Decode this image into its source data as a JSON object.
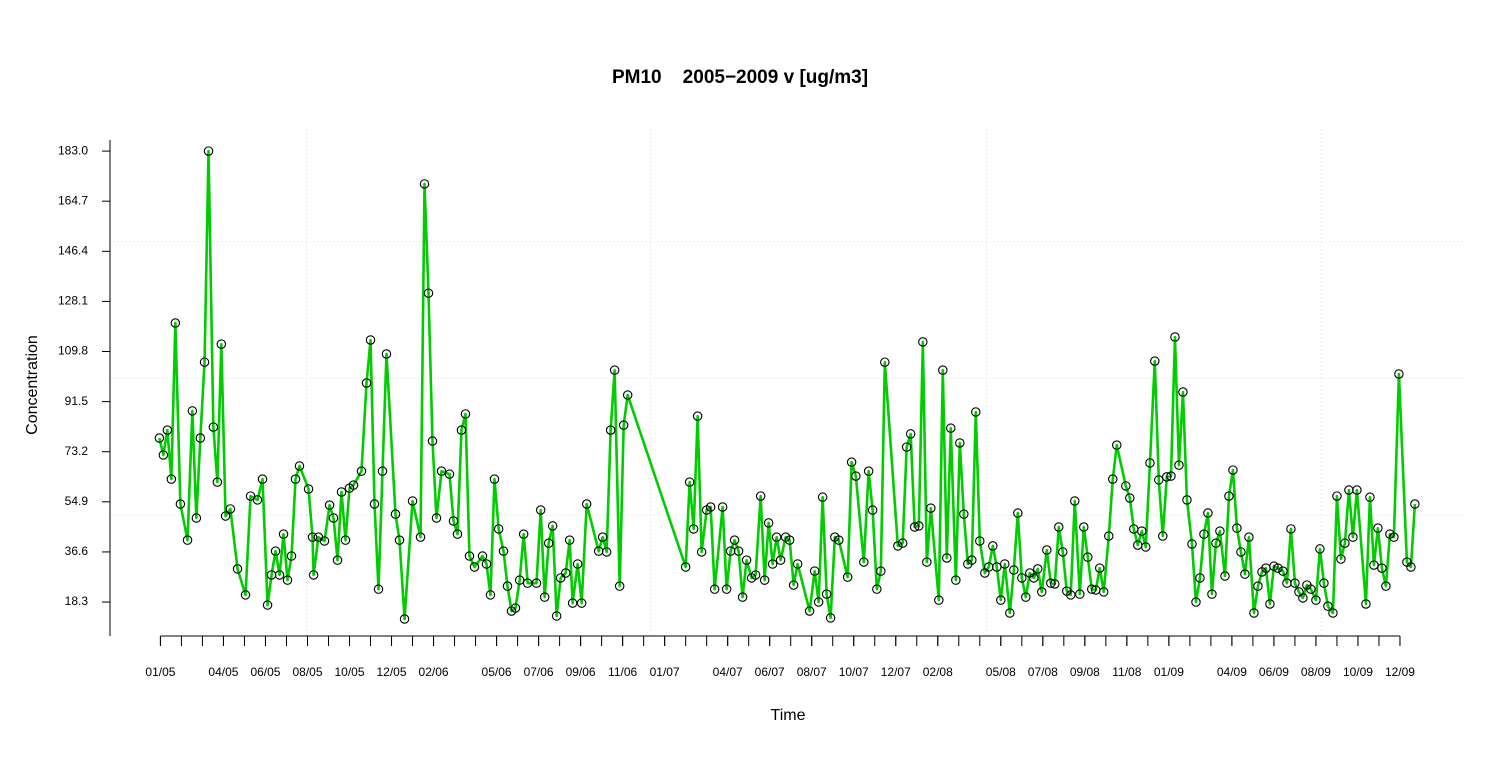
{
  "chart_data": {
    "type": "line",
    "title": "PM10    2005−2009 v [ug/m3]",
    "x_label": "Time",
    "y_label": "Concentration",
    "xlim": [
      -2.4,
      62
    ],
    "ylim": [
      5.9,
      190.7
    ],
    "xticks": [
      {
        "value": 0,
        "label": "01/05"
      },
      {
        "value": 3,
        "label": "04/05"
      },
      {
        "value": 5,
        "label": "06/05"
      },
      {
        "value": 7,
        "label": "08/05"
      },
      {
        "value": 9,
        "label": "10/05"
      },
      {
        "value": 11,
        "label": "12/05"
      },
      {
        "value": 13,
        "label": "02/06"
      },
      {
        "value": 16,
        "label": "05/06"
      },
      {
        "value": 18,
        "label": "07/06"
      },
      {
        "value": 20,
        "label": "09/06"
      },
      {
        "value": 22,
        "label": "11/06"
      },
      {
        "value": 24,
        "label": "01/07"
      },
      {
        "value": 27,
        "label": "04/07"
      },
      {
        "value": 29,
        "label": "06/07"
      },
      {
        "value": 31,
        "label": "08/07"
      },
      {
        "value": 33,
        "label": "10/07"
      },
      {
        "value": 35,
        "label": "12/07"
      },
      {
        "value": 37,
        "label": "02/08"
      },
      {
        "value": 40,
        "label": "05/08"
      },
      {
        "value": 42,
        "label": "07/08"
      },
      {
        "value": 44,
        "label": "09/08"
      },
      {
        "value": 46,
        "label": "11/08"
      },
      {
        "value": 48,
        "label": "01/09"
      },
      {
        "value": 51,
        "label": "04/09"
      },
      {
        "value": 53,
        "label": "06/09"
      },
      {
        "value": 55,
        "label": "08/09"
      },
      {
        "value": 57,
        "label": "10/09"
      },
      {
        "value": 59,
        "label": "12/09"
      }
    ],
    "yticks": [
      18.3,
      36.6,
      54.9,
      73.2,
      91.5,
      109.8,
      128.1,
      146.4,
      164.7,
      {
        "value": 183,
        "label": "183.0"
      }
    ],
    "grid": true,
    "xgrid": [
      6.95,
      23.33,
      39.33,
      55.24
    ],
    "ygrid": [
      50,
      100,
      150
    ],
    "marker_color": "#000000",
    "x": [
      -0.05,
      0.14,
      0.33,
      0.52,
      0.71,
      0.95,
      1.29,
      1.52,
      1.71,
      1.9,
      2.1,
      2.29,
      2.52,
      2.71,
      2.9,
      3.1,
      3.33,
      3.67,
      4.05,
      4.29,
      4.62,
      4.86,
      5.1,
      5.29,
      5.48,
      5.67,
      5.86,
      6.05,
      6.24,
      6.43,
      6.62,
      7.05,
      7.24,
      7.29,
      7.52,
      7.81,
      8.05,
      8.24,
      8.43,
      8.62,
      8.81,
      9.0,
      9.19,
      9.57,
      9.81,
      10.0,
      10.19,
      10.38,
      10.57,
      10.76,
      11.19,
      11.38,
      11.62,
      12.0,
      12.38,
      12.57,
      12.76,
      12.95,
      13.14,
      13.38,
      13.76,
      13.95,
      14.14,
      14.33,
      14.52,
      14.71,
      14.95,
      15.33,
      15.52,
      15.71,
      15.9,
      16.1,
      16.33,
      16.52,
      16.71,
      16.9,
      17.1,
      17.29,
      17.48,
      17.9,
      18.1,
      18.29,
      18.48,
      18.67,
      18.86,
      19.05,
      19.29,
      19.48,
      19.62,
      19.86,
      20.05,
      20.29,
      20.86,
      21.05,
      21.24,
      21.43,
      21.62,
      21.86,
      22.05,
      22.24,
      25.0,
      25.19,
      25.38,
      25.57,
      25.76,
      26.0,
      26.19,
      26.38,
      26.76,
      26.95,
      27.14,
      27.33,
      27.52,
      27.71,
      27.9,
      28.14,
      28.33,
      28.57,
      28.76,
      28.95,
      29.14,
      29.33,
      29.52,
      29.76,
      29.95,
      30.14,
      30.33,
      30.9,
      31.14,
      31.33,
      31.52,
      31.71,
      31.9,
      32.1,
      32.29,
      32.71,
      32.9,
      33.1,
      33.48,
      33.71,
      33.9,
      34.1,
      34.29,
      34.48,
      35.1,
      35.33,
      35.52,
      35.71,
      35.9,
      36.1,
      36.29,
      36.48,
      36.67,
      37.05,
      37.24,
      37.43,
      37.62,
      37.86,
      38.05,
      38.24,
      38.43,
      38.62,
      38.81,
      39.0,
      39.24,
      39.43,
      39.62,
      39.81,
      40.0,
      40.19,
      40.43,
      40.62,
      40.81,
      41.0,
      41.19,
      41.38,
      41.57,
      41.76,
      41.95,
      42.19,
      42.38,
      42.57,
      42.76,
      42.95,
      43.14,
      43.33,
      43.52,
      43.76,
      43.95,
      44.14,
      44.33,
      44.52,
      44.71,
      44.9,
      45.14,
      45.33,
      45.52,
      45.95,
      46.14,
      46.33,
      46.52,
      46.71,
      46.9,
      47.1,
      47.33,
      47.52,
      47.71,
      47.9,
      48.1,
      48.29,
      48.48,
      48.67,
      48.86,
      49.1,
      49.29,
      49.48,
      49.67,
      49.86,
      50.05,
      50.24,
      50.43,
      50.67,
      50.86,
      51.05,
      51.24,
      51.43,
      51.62,
      51.81,
      52.05,
      52.24,
      52.43,
      52.62,
      52.81,
      53.0,
      53.19,
      53.43,
      53.62,
      53.81,
      54.0,
      54.19,
      54.38,
      54.57,
      54.76,
      55.0,
      55.19,
      55.38,
      55.57,
      55.81,
      56.0,
      56.19,
      56.38,
      56.57,
      56.76,
      56.95,
      57.38,
      57.57,
      57.76,
      57.95,
      58.14,
      58.33,
      58.52,
      58.71,
      58.95,
      59.33,
      59.52,
      59.71
    ],
    "series": [
      {
        "name": "PM10",
        "color": "#00cc00",
        "values": [
          78.2,
          72.0,
          81.1,
          63.2,
          120.2,
          54.1,
          40.9,
          88.1,
          49.0,
          78.2,
          105.9,
          183.0,
          82.2,
          62.1,
          112.5,
          49.7,
          52.3,
          30.4,
          20.9,
          57.0,
          55.6,
          63.2,
          17.2,
          28.2,
          36.9,
          28.2,
          43.1,
          26.3,
          35.1,
          63.2,
          68.0,
          59.6,
          42.0,
          28.2,
          42.0,
          40.6,
          53.7,
          49.0,
          33.6,
          58.5,
          40.9,
          59.9,
          61.0,
          66.1,
          98.3,
          114.0,
          54.1,
          23.0,
          66.1,
          108.9,
          50.4,
          40.9,
          12.1,
          55.2,
          42.0,
          171.0,
          131.1,
          77.1,
          49.0,
          66.1,
          65.0,
          47.9,
          43.1,
          81.1,
          87.0,
          35.1,
          31.1,
          35.1,
          32.2,
          20.9,
          63.2,
          45.0,
          36.9,
          24.1,
          15.0,
          16.1,
          26.3,
          43.1,
          25.2,
          25.2,
          51.9,
          20.1,
          39.8,
          46.1,
          13.2,
          27.1,
          28.9,
          40.9,
          17.9,
          32.2,
          17.9,
          54.1,
          36.9,
          42.0,
          36.6,
          81.1,
          103.0,
          24.1,
          82.9,
          93.9,
          31.1,
          62.1,
          45.0,
          86.2,
          36.6,
          51.9,
          53.0,
          23.0,
          53.0,
          23.0,
          36.9,
          40.9,
          36.9,
          20.1,
          33.6,
          27.1,
          28.2,
          57.0,
          26.3,
          47.2,
          32.2,
          42.0,
          33.6,
          42.0,
          40.9,
          24.5,
          32.2,
          15.0,
          29.6,
          18.3,
          56.6,
          21.2,
          12.5,
          42.0,
          40.9,
          27.4,
          69.4,
          64.3,
          32.9,
          66.1,
          51.9,
          23.0,
          29.6,
          105.9,
          38.8,
          39.8,
          74.9,
          79.7,
          45.7,
          46.1,
          113.3,
          32.9,
          52.6,
          19.0,
          103.0,
          34.4,
          81.8,
          26.3,
          76.4,
          50.4,
          32.2,
          33.6,
          87.7,
          40.6,
          28.9,
          31.1,
          38.8,
          31.1,
          19.0,
          32.2,
          14.3,
          30.0,
          50.8,
          27.1,
          20.1,
          28.9,
          27.1,
          30.4,
          22.0,
          37.3,
          25.2,
          24.9,
          45.7,
          36.6,
          22.3,
          20.9,
          55.2,
          21.2,
          45.7,
          34.7,
          23.0,
          22.7,
          30.7,
          22.0,
          42.4,
          63.2,
          75.6,
          60.7,
          56.3,
          45.0,
          39.1,
          44.2,
          38.4,
          69.1,
          106.3,
          62.9,
          42.4,
          64.0,
          64.3,
          115.1,
          68.3,
          95.0,
          55.6,
          39.5,
          18.3,
          27.1,
          43.1,
          50.8,
          21.2,
          39.8,
          44.2,
          27.8,
          57.0,
          66.5,
          45.3,
          36.6,
          28.5,
          42.0,
          14.3,
          24.1,
          29.3,
          30.7,
          17.6,
          31.4,
          30.7,
          29.6,
          25.2,
          45.0,
          25.2,
          22.0,
          19.8,
          24.5,
          23.0,
          19.0,
          37.7,
          25.2,
          16.8,
          14.3,
          57.0,
          34.0,
          39.8,
          59.2,
          42.0,
          59.2,
          17.6,
          56.6,
          31.8,
          45.3,
          30.7,
          24.1,
          43.1,
          42.0,
          101.6,
          32.9,
          31.1,
          54.1
        ]
      }
    ]
  }
}
